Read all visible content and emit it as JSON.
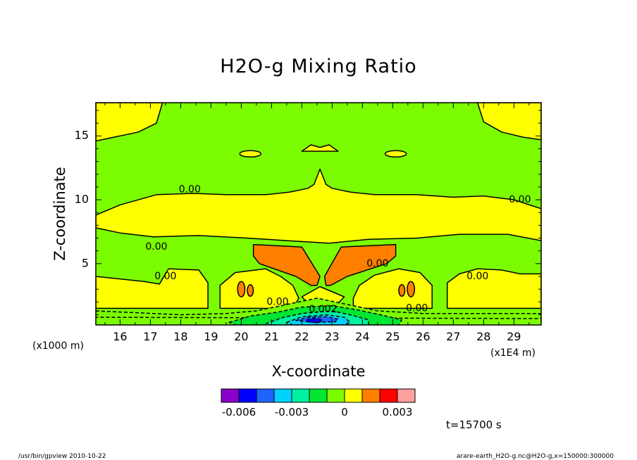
{
  "chart_data": {
    "type": "heatmap",
    "title": "H2O-g Mixing Ratio",
    "xlabel": "X-coordinate",
    "ylabel": "Z-coordinate",
    "x_unit": "(x1E4 m)",
    "y_unit": "(x1000 m)",
    "xlim": [
      15.2,
      29.9
    ],
    "ylim": [
      0.2,
      17.6
    ],
    "x_ticks": [
      16,
      17,
      18,
      19,
      20,
      21,
      22,
      23,
      24,
      25,
      26,
      27,
      28,
      29
    ],
    "y_ticks": [
      5,
      10,
      15
    ],
    "grid": false,
    "colorbar": {
      "levels": [
        -0.007,
        -0.006,
        -0.005,
        -0.004,
        -0.003,
        -0.002,
        -0.001,
        0,
        0.001,
        0.002,
        0.003,
        0.004
      ],
      "colors": [
        "#8a00c8",
        "#0000ff",
        "#1e64ff",
        "#00d2ff",
        "#00f0a0",
        "#00e632",
        "#7cfc00",
        "#ffff00",
        "#ff7f00",
        "#ff0000",
        "#ffa0a0"
      ],
      "tick_labels": [
        {
          "value": -0.006,
          "label": "-0.006"
        },
        {
          "value": -0.003,
          "label": "-0.003"
        },
        {
          "value": 0,
          "label": "0"
        },
        {
          "value": 0.003,
          "label": "0.003"
        }
      ]
    },
    "contour_labels": [
      {
        "text": "0.00",
        "x": 18.3,
        "z": 10.8
      },
      {
        "text": "0.00",
        "x": 29.2,
        "z": 10.0
      },
      {
        "text": "0.00",
        "x": 17.2,
        "z": 6.3
      },
      {
        "text": "0.00",
        "x": 17.5,
        "z": 4.0
      },
      {
        "text": "0.00",
        "x": 27.8,
        "z": 4.0
      },
      {
        "text": "0.00",
        "x": 24.5,
        "z": 5.0
      },
      {
        "text": "0.00",
        "x": 21.2,
        "z": 2.0
      },
      {
        "text": "0.00",
        "x": 25.8,
        "z": 1.5
      },
      {
        "text": "0.002",
        "x": 22.7,
        "z": 1.4
      }
    ],
    "fields": [
      {
        "level": 0.0005,
        "shape": "poly",
        "points": [
          [
            15.2,
            8.8
          ],
          [
            16.0,
            9.6
          ],
          [
            17.2,
            10.4
          ],
          [
            18.4,
            10.5
          ],
          [
            19.5,
            10.4
          ],
          [
            20.8,
            10.4
          ],
          [
            21.6,
            10.6
          ],
          [
            22.2,
            10.9
          ],
          [
            22.4,
            11.2
          ],
          [
            22.6,
            12.4
          ],
          [
            22.8,
            11.2
          ],
          [
            23.0,
            10.9
          ],
          [
            23.6,
            10.6
          ],
          [
            24.4,
            10.4
          ],
          [
            25.8,
            10.4
          ],
          [
            27.0,
            10.2
          ],
          [
            28.0,
            10.3
          ],
          [
            29.0,
            10.0
          ],
          [
            29.9,
            9.3
          ],
          [
            29.9,
            6.8
          ],
          [
            28.8,
            7.3
          ],
          [
            27.2,
            7.3
          ],
          [
            25.8,
            7.0
          ],
          [
            24.2,
            6.9
          ],
          [
            22.9,
            6.6
          ],
          [
            21.5,
            6.8
          ],
          [
            20.2,
            7.0
          ],
          [
            18.6,
            7.2
          ],
          [
            17.1,
            7.1
          ],
          [
            16.0,
            7.4
          ],
          [
            15.2,
            7.8
          ]
        ]
      },
      {
        "level": 0.0005,
        "shape": "poly",
        "points": [
          [
            15.2,
            17.6
          ],
          [
            15.2,
            14.6
          ],
          [
            15.8,
            14.9
          ],
          [
            16.6,
            15.3
          ],
          [
            17.2,
            16.0
          ],
          [
            17.4,
            17.6
          ]
        ]
      },
      {
        "level": 0.0005,
        "shape": "poly",
        "points": [
          [
            27.8,
            17.6
          ],
          [
            28.0,
            16.1
          ],
          [
            28.6,
            15.3
          ],
          [
            29.3,
            14.9
          ],
          [
            29.9,
            14.7
          ],
          [
            29.9,
            17.6
          ]
        ]
      },
      {
        "level": 0.0005,
        "shape": "ellipse",
        "cx": 20.3,
        "cz": 13.6,
        "rx": 0.35,
        "rz": 0.25
      },
      {
        "level": 0.0005,
        "shape": "ellipse",
        "cx": 25.1,
        "cz": 13.6,
        "rx": 0.35,
        "rz": 0.25
      },
      {
        "level": 0.0005,
        "shape": "poly",
        "points": [
          [
            22.0,
            13.8
          ],
          [
            22.3,
            14.3
          ],
          [
            22.6,
            14.1
          ],
          [
            22.9,
            14.3
          ],
          [
            23.2,
            13.8
          ]
        ]
      },
      {
        "level": 0.0005,
        "shape": "poly",
        "points": [
          [
            15.2,
            4.0
          ],
          [
            16.0,
            3.8
          ],
          [
            16.8,
            3.6
          ],
          [
            17.3,
            3.4
          ],
          [
            17.6,
            4.6
          ],
          [
            18.6,
            4.5
          ],
          [
            18.9,
            3.5
          ],
          [
            18.9,
            1.5
          ],
          [
            15.2,
            1.5
          ]
        ]
      },
      {
        "level": 0.0005,
        "shape": "poly",
        "points": [
          [
            29.9,
            4.2
          ],
          [
            29.2,
            4.2
          ],
          [
            28.6,
            4.5
          ],
          [
            27.8,
            4.6
          ],
          [
            27.2,
            4.2
          ],
          [
            26.8,
            3.5
          ],
          [
            26.8,
            1.5
          ],
          [
            29.9,
            1.5
          ]
        ]
      },
      {
        "level": 0.0005,
        "shape": "poly",
        "points": [
          [
            19.3,
            3.3
          ],
          [
            19.8,
            4.3
          ],
          [
            20.8,
            4.6
          ],
          [
            21.3,
            4.0
          ],
          [
            21.7,
            3.3
          ],
          [
            21.9,
            2.3
          ],
          [
            21.7,
            1.5
          ],
          [
            19.3,
            1.5
          ]
        ]
      },
      {
        "level": 0.0005,
        "shape": "poly",
        "points": [
          [
            23.7,
            2.3
          ],
          [
            23.9,
            3.3
          ],
          [
            24.4,
            4.1
          ],
          [
            25.2,
            4.6
          ],
          [
            25.9,
            4.3
          ],
          [
            26.3,
            3.3
          ],
          [
            26.3,
            1.5
          ],
          [
            23.7,
            1.5
          ]
        ]
      },
      {
        "level": 0.0005,
        "shape": "poly",
        "points": [
          [
            22.0,
            2.4
          ],
          [
            22.6,
            3.2
          ],
          [
            23.4,
            2.4
          ],
          [
            23.2,
            1.9
          ],
          [
            22.2,
            1.9
          ]
        ]
      },
      {
        "level": 0.0015,
        "shape": "poly",
        "points": [
          [
            20.4,
            6.5
          ],
          [
            21.2,
            6.4
          ],
          [
            22.0,
            6.3
          ],
          [
            22.6,
            4.0
          ],
          [
            22.5,
            3.3
          ],
          [
            22.3,
            3.3
          ],
          [
            21.8,
            4.0
          ],
          [
            20.6,
            5.0
          ],
          [
            20.4,
            5.6
          ]
        ]
      },
      {
        "level": 0.0015,
        "shape": "poly",
        "points": [
          [
            25.1,
            6.5
          ],
          [
            24.2,
            6.4
          ],
          [
            23.3,
            6.3
          ],
          [
            22.75,
            4.0
          ],
          [
            22.8,
            3.3
          ],
          [
            22.95,
            3.3
          ],
          [
            23.5,
            4.0
          ],
          [
            24.8,
            5.0
          ],
          [
            25.1,
            5.6
          ]
        ]
      },
      {
        "level": 0.0015,
        "shape": "ellipse",
        "cx": 20.0,
        "cz": 3.0,
        "rx": 0.12,
        "rz": 0.6
      },
      {
        "level": 0.0015,
        "shape": "ellipse",
        "cx": 20.3,
        "cz": 2.9,
        "rx": 0.1,
        "rz": 0.45
      },
      {
        "level": 0.0015,
        "shape": "ellipse",
        "cx": 25.6,
        "cz": 3.0,
        "rx": 0.12,
        "rz": 0.6
      },
      {
        "level": 0.0015,
        "shape": "ellipse",
        "cx": 25.3,
        "cz": 2.9,
        "rx": 0.1,
        "rz": 0.45
      },
      {
        "level": -0.0005,
        "shape": "poly",
        "points": [
          [
            15.2,
            1.3
          ],
          [
            18.0,
            1.0
          ],
          [
            19.5,
            1.1
          ],
          [
            20.5,
            1.3
          ],
          [
            21.5,
            1.8
          ],
          [
            22.5,
            2.3
          ],
          [
            23.5,
            1.8
          ],
          [
            24.5,
            1.3
          ],
          [
            26.0,
            1.1
          ],
          [
            29.9,
            1.1
          ],
          [
            29.9,
            0.7
          ],
          [
            15.2,
            0.8
          ]
        ]
      },
      {
        "level": -0.0015,
        "shape": "poly",
        "points": [
          [
            19.6,
            0.4
          ],
          [
            20.3,
            0.9
          ],
          [
            21.2,
            1.2
          ],
          [
            22.0,
            1.6
          ],
          [
            23.0,
            1.7
          ],
          [
            23.8,
            1.4
          ],
          [
            24.6,
            1.0
          ],
          [
            25.3,
            0.6
          ],
          [
            25.2,
            0.2
          ],
          [
            19.8,
            0.2
          ]
        ]
      },
      {
        "level": -0.0025,
        "shape": "poly",
        "points": [
          [
            20.8,
            0.3
          ],
          [
            21.4,
            0.8
          ],
          [
            22.0,
            1.1
          ],
          [
            23.0,
            1.3
          ],
          [
            23.6,
            1.0
          ],
          [
            24.2,
            0.6
          ],
          [
            24.2,
            0.2
          ],
          [
            20.9,
            0.2
          ]
        ]
      },
      {
        "level": -0.0035,
        "shape": "poly",
        "points": [
          [
            21.5,
            0.4
          ],
          [
            22.0,
            0.85
          ],
          [
            22.8,
            1.0
          ],
          [
            23.4,
            0.8
          ],
          [
            23.6,
            0.4
          ],
          [
            23.4,
            0.2
          ],
          [
            21.7,
            0.2
          ]
        ]
      },
      {
        "level": -0.0045,
        "shape": "poly",
        "points": [
          [
            21.8,
            0.55
          ],
          [
            22.2,
            0.8
          ],
          [
            22.8,
            0.85
          ],
          [
            23.2,
            0.65
          ],
          [
            23.1,
            0.45
          ],
          [
            22.4,
            0.4
          ]
        ]
      },
      {
        "level": -0.0055,
        "shape": "ellipse",
        "cx": 22.4,
        "cz": 0.55,
        "rx": 0.25,
        "rz": 0.15
      }
    ]
  },
  "footer": {
    "time_label": "t=15700 s",
    "program_label": "/usr/bin/gpview   2010-10-22",
    "file_label": "arare-earth_H2O-g.nc@H2O-g,x=150000:300000"
  }
}
